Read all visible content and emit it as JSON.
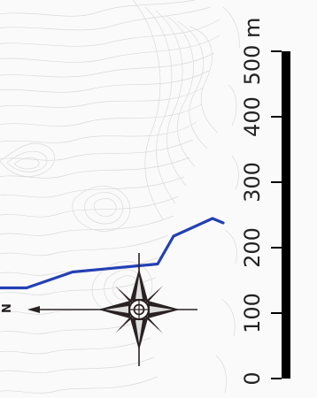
{
  "map": {
    "colors": {
      "background": "#fafafa",
      "contour": "#d9d9d9",
      "route": "#2440b5",
      "compass": "#2a2123",
      "scale_bar": "#000000"
    },
    "route": {
      "name": "",
      "shape": "blue polyline crossing the map from left toward the upper right"
    },
    "compass": {
      "north_label": "N",
      "icon": "compass-rose-icon"
    },
    "scale_bar": {
      "orientation": "vertical",
      "unit": "m",
      "ticks": [
        {
          "value": 0,
          "label": "0"
        },
        {
          "value": 100,
          "label": "100"
        },
        {
          "value": 200,
          "label": "200"
        },
        {
          "value": 300,
          "label": "300"
        },
        {
          "value": 400,
          "label": "400"
        },
        {
          "value": 500,
          "label": "500 m"
        }
      ]
    }
  }
}
